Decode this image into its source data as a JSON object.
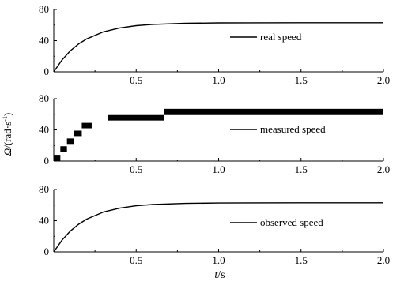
{
  "chart_data": [
    {
      "type": "line",
      "series": [
        {
          "name": "real speed",
          "x": [
            0,
            0.05,
            0.1,
            0.15,
            0.2,
            0.3,
            0.4,
            0.5,
            0.6,
            0.8,
            1.0,
            1.2,
            1.5,
            2.0
          ],
          "y": [
            0,
            15.2,
            26.8,
            35.6,
            42.2,
            51.2,
            56.3,
            59.2,
            60.9,
            62.3,
            62.8,
            62.9,
            63.0,
            63.0
          ]
        }
      ],
      "xlim": [
        0,
        2.0
      ],
      "ylim": [
        0,
        80
      ],
      "xticks": [
        "0.5",
        "1.0",
        "1.5",
        "2.0"
      ],
      "yticks": [
        "0",
        "40",
        "80"
      ]
    },
    {
      "type": "line",
      "series": [
        {
          "name": "measured speed",
          "x": [
            0,
            0.01,
            0.01,
            0.04,
            0.04,
            0.08,
            0.08,
            0.12,
            0.12,
            0.17,
            0.17,
            0.23,
            0.23,
            0.33,
            0.33,
            0.67,
            0.67,
            2.0
          ],
          "y": [
            5,
            5,
            0,
            0,
            15,
            15,
            25,
            25,
            35,
            35,
            45,
            45,
            55,
            55,
            50,
            50,
            63,
            63
          ]
        }
      ],
      "band_ranges": [
        [
          0.0,
          0.04,
          0,
          8
        ],
        [
          0.04,
          0.08,
          12,
          19
        ],
        [
          0.08,
          0.12,
          22,
          29
        ],
        [
          0.12,
          0.17,
          32,
          39
        ],
        [
          0.17,
          0.23,
          42,
          49
        ],
        [
          0.33,
          0.67,
          52,
          59
        ],
        [
          0.67,
          2.0,
          59,
          67
        ]
      ],
      "xlim": [
        0,
        2.0
      ],
      "ylim": [
        0,
        80
      ],
      "xticks": [
        "0.5",
        "1.0",
        "1.5",
        "2.0"
      ],
      "yticks": [
        "0",
        "40",
        "80"
      ]
    },
    {
      "type": "line",
      "series": [
        {
          "name": "observed speed",
          "x": [
            0,
            0.05,
            0.1,
            0.15,
            0.2,
            0.3,
            0.4,
            0.5,
            0.6,
            0.8,
            1.0,
            1.2,
            1.5,
            2.0
          ],
          "y": [
            0,
            15.0,
            26.5,
            35.3,
            42.0,
            51.0,
            56.1,
            59.1,
            60.8,
            62.2,
            62.7,
            62.9,
            63.0,
            63.0
          ]
        }
      ],
      "xlim": [
        0,
        2.0
      ],
      "ylim": [
        0,
        80
      ],
      "xticks": [
        "0.5",
        "1.0",
        "1.5",
        "2.0"
      ],
      "yticks": [
        "0",
        "40",
        "80"
      ]
    }
  ],
  "ylabel_symbol": "Ω",
  "ylabel_unit": "/(rad·s",
  "ylabel_exp": "-1",
  "ylabel_close": ")",
  "xlabel_symbol": "t",
  "xlabel_unit": "/s",
  "legend_labels": [
    "real speed",
    "measured speed",
    "observed speed"
  ]
}
